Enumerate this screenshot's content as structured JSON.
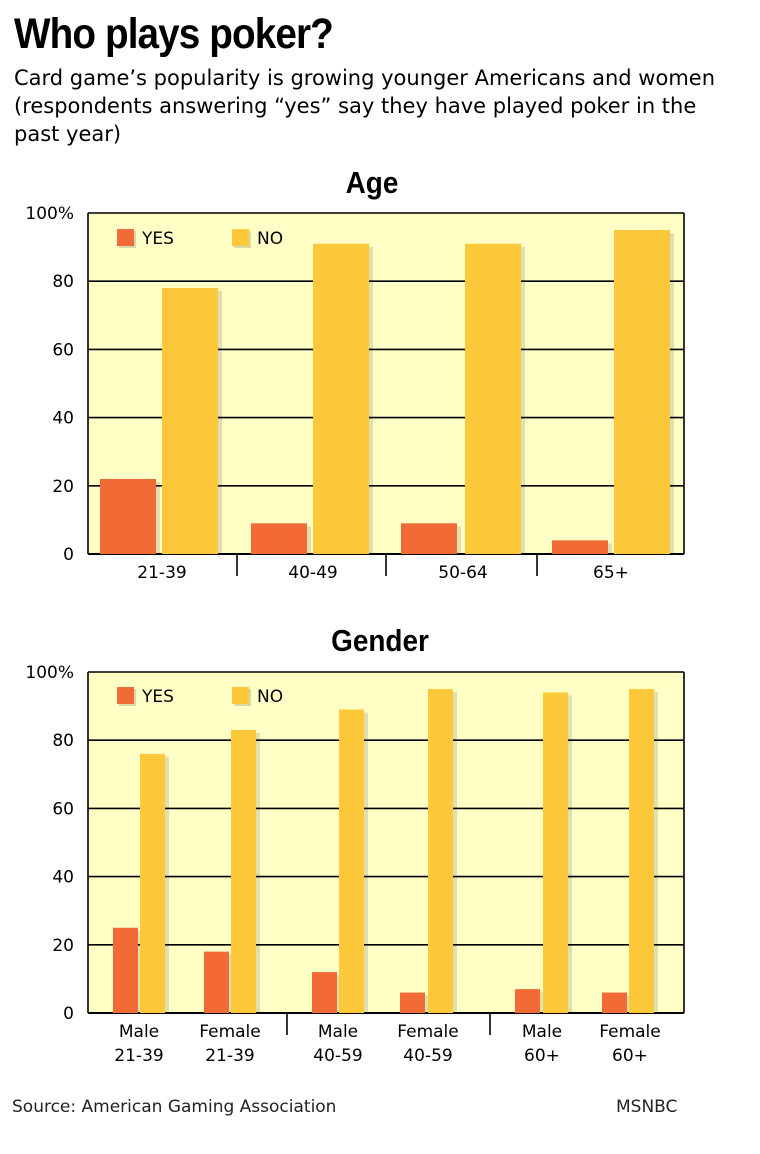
{
  "header": {
    "title": "Who plays poker?",
    "subtitle": "Card game’s popularity is growing younger Americans and women (respondents answering “yes” say they have played poker in the past year)"
  },
  "footer": {
    "source": "Source: American Gaming Association",
    "credit": "MSNBC"
  },
  "colors": {
    "yes": "#f26a35",
    "no": "#fec83b",
    "plot_bg": "#ffffc6"
  },
  "chart_data": [
    {
      "type": "bar",
      "title": "Age",
      "categories": [
        "21-39",
        "40-49",
        "50-64",
        "65+"
      ],
      "series": [
        {
          "name": "YES",
          "values": [
            22,
            9,
            9,
            4
          ]
        },
        {
          "name": "NO",
          "values": [
            78,
            91,
            91,
            95
          ]
        }
      ],
      "yticks": [
        "100%",
        "80",
        "60",
        "40",
        "20",
        "0"
      ],
      "ylim": [
        0,
        100
      ],
      "grid": true,
      "legend": "top-left"
    },
    {
      "type": "bar",
      "title": "Gender",
      "categories": [
        [
          "Male",
          "21-39"
        ],
        [
          "Female",
          "21-39"
        ],
        [
          "Male",
          "40-59"
        ],
        [
          "Female",
          "40-59"
        ],
        [
          "Male",
          "60+"
        ],
        [
          "Female",
          "60+"
        ]
      ],
      "series": [
        {
          "name": "YES",
          "values": [
            25,
            18,
            12,
            6,
            7,
            6
          ]
        },
        {
          "name": "NO",
          "values": [
            76,
            83,
            89,
            95,
            94,
            95
          ]
        }
      ],
      "yticks": [
        "100%",
        "80",
        "60",
        "40",
        "20",
        "0"
      ],
      "ylim": [
        0,
        100
      ],
      "grid": true,
      "legend": "top-left"
    }
  ]
}
